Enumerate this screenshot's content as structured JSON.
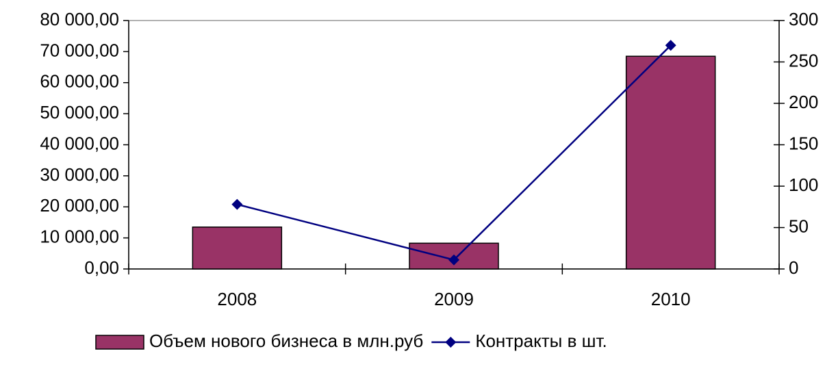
{
  "chart_data": {
    "type": "bar",
    "categories": [
      "2008",
      "2009",
      "2010"
    ],
    "series": [
      {
        "name": "Объем нового бизнеса в млн.руб",
        "color": "#993366",
        "values": [
          13500,
          8300,
          68500
        ]
      },
      {
        "name": "Контракты в шт.",
        "color": "#000080",
        "values": [
          78,
          11,
          270
        ],
        "axis": "y2",
        "type": "line"
      }
    ],
    "ylim": [
      0,
      80000
    ],
    "yticks": [
      {
        "value": 0,
        "label": "0,00"
      },
      {
        "value": 10000,
        "label": "10 000,00"
      },
      {
        "value": 20000,
        "label": "20 000,00"
      },
      {
        "value": 30000,
        "label": "30 000,00"
      },
      {
        "value": 40000,
        "label": "40 000,00"
      },
      {
        "value": 50000,
        "label": "50 000,00"
      },
      {
        "value": 60000,
        "label": "60 000,00"
      },
      {
        "value": 70000,
        "label": "70 000,00"
      },
      {
        "value": 80000,
        "label": "80 000,00"
      }
    ],
    "y2lim": [
      0,
      300
    ],
    "y2ticks": [
      0,
      50,
      100,
      150,
      200,
      250,
      300
    ],
    "grid": false,
    "legend": "bottom"
  }
}
